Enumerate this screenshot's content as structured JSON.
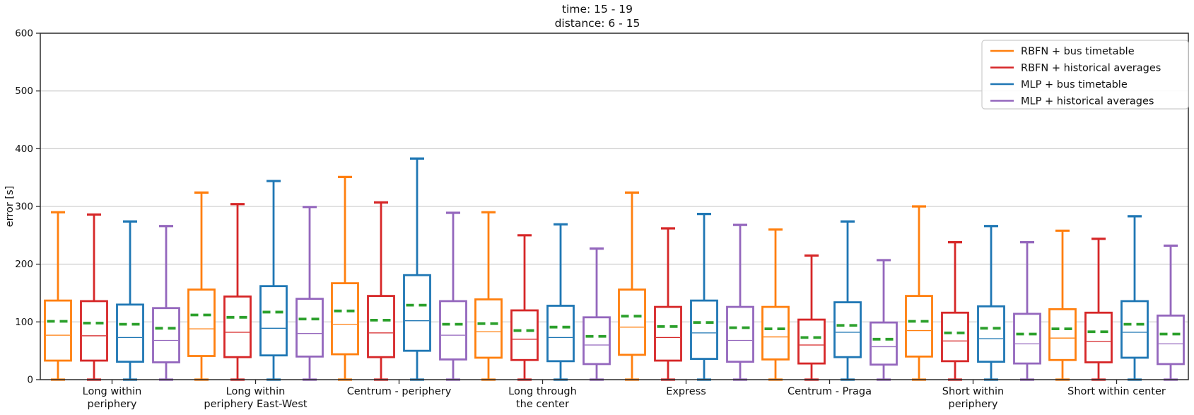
{
  "title": {
    "line1": "time: 15 - 19",
    "line2": "distance: 6 - 15"
  },
  "axes": {
    "ylabel": "error [s]",
    "yticks": [
      0,
      100,
      200,
      300,
      400,
      500,
      600
    ]
  },
  "chart_data": {
    "type": "boxplot",
    "title": "time: 15 - 19\ndistance: 6 - 15",
    "xlabel": "",
    "ylabel": "error [s]",
    "ylim": [
      0,
      600
    ],
    "grid": "horizontal",
    "legend_position": "upper right",
    "mean_line_color": "#2ca02c",
    "categories": [
      "Long within\nperiphery",
      "Long within\nperiphery East-West",
      "Centrum - periphery",
      "Long through\nthe center",
      "Express",
      "Centrum - Praga",
      "Short within\nperiphery",
      "Short within center"
    ],
    "series": [
      {
        "name": "RBFN + bus timetable",
        "color": "#ff7f0e",
        "boxes": [
          {
            "low": 0,
            "q1": 33,
            "median": 77,
            "mean": 101,
            "q3": 137,
            "high": 290
          },
          {
            "low": 0,
            "q1": 41,
            "median": 88,
            "mean": 112,
            "q3": 156,
            "high": 324
          },
          {
            "low": 0,
            "q1": 44,
            "median": 96,
            "mean": 119,
            "q3": 167,
            "high": 351
          },
          {
            "low": 0,
            "q1": 38,
            "median": 83,
            "mean": 97,
            "q3": 139,
            "high": 290
          },
          {
            "low": 0,
            "q1": 43,
            "median": 91,
            "mean": 110,
            "q3": 156,
            "high": 324
          },
          {
            "low": 0,
            "q1": 35,
            "median": 74,
            "mean": 88,
            "q3": 126,
            "high": 260
          },
          {
            "low": 0,
            "q1": 40,
            "median": 85,
            "mean": 101,
            "q3": 145,
            "high": 300
          },
          {
            "low": 0,
            "q1": 34,
            "median": 72,
            "mean": 88,
            "q3": 122,
            "high": 258
          }
        ]
      },
      {
        "name": "RBFN + historical averages",
        "color": "#d62728",
        "boxes": [
          {
            "low": 0,
            "q1": 33,
            "median": 76,
            "mean": 98,
            "q3": 136,
            "high": 286
          },
          {
            "low": 0,
            "q1": 39,
            "median": 82,
            "mean": 108,
            "q3": 144,
            "high": 304
          },
          {
            "low": 0,
            "q1": 39,
            "median": 81,
            "mean": 103,
            "q3": 145,
            "high": 307
          },
          {
            "low": 0,
            "q1": 34,
            "median": 70,
            "mean": 85,
            "q3": 120,
            "high": 250
          },
          {
            "low": 0,
            "q1": 33,
            "median": 73,
            "mean": 92,
            "q3": 126,
            "high": 262
          },
          {
            "low": 0,
            "q1": 28,
            "median": 60,
            "mean": 73,
            "q3": 104,
            "high": 215
          },
          {
            "low": 0,
            "q1": 32,
            "median": 67,
            "mean": 81,
            "q3": 116,
            "high": 238
          },
          {
            "low": 0,
            "q1": 30,
            "median": 66,
            "mean": 83,
            "q3": 116,
            "high": 244
          }
        ]
      },
      {
        "name": "MLP + bus timetable",
        "color": "#1f77b4",
        "boxes": [
          {
            "low": 0,
            "q1": 31,
            "median": 73,
            "mean": 96,
            "q3": 130,
            "high": 274
          },
          {
            "low": 0,
            "q1": 42,
            "median": 89,
            "mean": 117,
            "q3": 162,
            "high": 344
          },
          {
            "low": 0,
            "q1": 50,
            "median": 102,
            "mean": 129,
            "q3": 181,
            "high": 383
          },
          {
            "low": 0,
            "q1": 32,
            "median": 73,
            "mean": 91,
            "q3": 128,
            "high": 269
          },
          {
            "low": 0,
            "q1": 36,
            "median": 81,
            "mean": 99,
            "q3": 137,
            "high": 287
          },
          {
            "low": 0,
            "q1": 39,
            "median": 82,
            "mean": 94,
            "q3": 134,
            "high": 274
          },
          {
            "low": 0,
            "q1": 31,
            "median": 71,
            "mean": 89,
            "q3": 127,
            "high": 266
          },
          {
            "low": 0,
            "q1": 38,
            "median": 82,
            "mean": 96,
            "q3": 136,
            "high": 283
          }
        ]
      },
      {
        "name": "MLP + historical averages",
        "color": "#9467bd",
        "boxes": [
          {
            "low": 0,
            "q1": 30,
            "median": 68,
            "mean": 89,
            "q3": 124,
            "high": 266
          },
          {
            "low": 0,
            "q1": 40,
            "median": 80,
            "mean": 105,
            "q3": 140,
            "high": 299
          },
          {
            "low": 0,
            "q1": 35,
            "median": 77,
            "mean": 96,
            "q3": 136,
            "high": 289
          },
          {
            "low": 0,
            "q1": 27,
            "median": 60,
            "mean": 75,
            "q3": 108,
            "high": 227
          },
          {
            "low": 0,
            "q1": 31,
            "median": 68,
            "mean": 90,
            "q3": 126,
            "high": 268
          },
          {
            "low": 0,
            "q1": 26,
            "median": 57,
            "mean": 70,
            "q3": 99,
            "high": 207
          },
          {
            "low": 0,
            "q1": 28,
            "median": 62,
            "mean": 79,
            "q3": 114,
            "high": 238
          },
          {
            "low": 0,
            "q1": 27,
            "median": 62,
            "mean": 79,
            "q3": 111,
            "high": 232
          }
        ]
      }
    ]
  }
}
